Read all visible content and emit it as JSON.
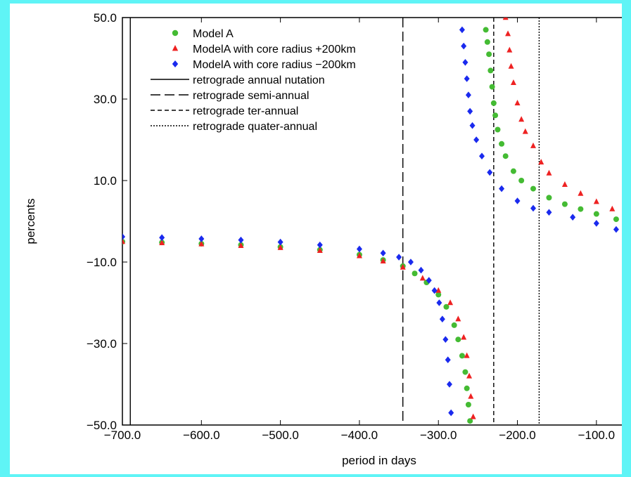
{
  "chart_data": {
    "type": "scatter",
    "xlabel": "period in days",
    "ylabel": "percents",
    "xlim": [
      -700,
      -50
    ],
    "ylim": [
      -50,
      50
    ],
    "x_ticks": [
      -700,
      -600,
      -500,
      -400,
      -300,
      -200,
      -100
    ],
    "x_tick_labels": [
      "−700.0",
      "−600.0",
      "−500.0",
      "−400.0",
      "−300.0",
      "−200.0",
      "−100.0"
    ],
    "y_ticks": [
      -50,
      -30,
      -10,
      10,
      30,
      50
    ],
    "y_tick_labels": [
      "−50.0",
      "−30.0",
      "−10.0",
      "10.0",
      "30.0",
      "50.0"
    ],
    "legend_placement": "top-left",
    "series": [
      {
        "name": "Model A",
        "marker": "circle",
        "color": "#44bb33",
        "points": [
          [
            -700,
            -5
          ],
          [
            -650,
            -5.2
          ],
          [
            -600,
            -5.5
          ],
          [
            -550,
            -5.8
          ],
          [
            -500,
            -6.3
          ],
          [
            -450,
            -7
          ],
          [
            -400,
            -8.2
          ],
          [
            -370,
            -9.5
          ],
          [
            -345,
            -11
          ],
          [
            -330,
            -12.8
          ],
          [
            -315,
            -15
          ],
          [
            -300,
            -18
          ],
          [
            -290,
            -21
          ],
          [
            -280,
            -25.5
          ],
          [
            -275,
            -29
          ],
          [
            -270,
            -33
          ],
          [
            -266,
            -37
          ],
          [
            -264,
            -41
          ],
          [
            -262,
            -45
          ],
          [
            -260,
            -49
          ],
          [
            -240,
            47
          ],
          [
            -238,
            44
          ],
          [
            -236,
            41
          ],
          [
            -234,
            37
          ],
          [
            -232,
            33
          ],
          [
            -230,
            29
          ],
          [
            -228,
            26
          ],
          [
            -225,
            22.5
          ],
          [
            -220,
            19
          ],
          [
            -215,
            16
          ],
          [
            -205,
            12.3
          ],
          [
            -195,
            10
          ],
          [
            -180,
            8
          ],
          [
            -160,
            5.8
          ],
          [
            -140,
            4.2
          ],
          [
            -120,
            3
          ],
          [
            -100,
            1.8
          ],
          [
            -75,
            0.5
          ],
          [
            -55,
            -0.3
          ]
        ]
      },
      {
        "name": "ModelA with core radius +200km",
        "marker": "triangle",
        "color": "#ee2222",
        "points": [
          [
            -700,
            -5
          ],
          [
            -650,
            -5.3
          ],
          [
            -600,
            -5.6
          ],
          [
            -550,
            -6
          ],
          [
            -500,
            -6.5
          ],
          [
            -450,
            -7.2
          ],
          [
            -400,
            -8.5
          ],
          [
            -370,
            -9.8
          ],
          [
            -345,
            -11.3
          ],
          [
            -320,
            -14
          ],
          [
            -300,
            -17
          ],
          [
            -285,
            -20
          ],
          [
            -275,
            -24
          ],
          [
            -268,
            -28.5
          ],
          [
            -264,
            -33
          ],
          [
            -261,
            -38
          ],
          [
            -259,
            -43
          ],
          [
            -256,
            -48
          ],
          [
            -215,
            50
          ],
          [
            -212,
            46
          ],
          [
            -210,
            42
          ],
          [
            -208,
            38
          ],
          [
            -205,
            34
          ],
          [
            -200,
            29
          ],
          [
            -195,
            25
          ],
          [
            -190,
            22
          ],
          [
            -180,
            18.5
          ],
          [
            -170,
            14.5
          ],
          [
            -160,
            11.8
          ],
          [
            -140,
            9
          ],
          [
            -120,
            6.8
          ],
          [
            -100,
            4.8
          ],
          [
            -80,
            3
          ],
          [
            -55,
            0.9
          ]
        ]
      },
      {
        "name": "ModelA with core radius −200km",
        "marker": "diamond",
        "color": "#1a2aee",
        "points": [
          [
            -700,
            -3.8
          ],
          [
            -650,
            -4
          ],
          [
            -600,
            -4.3
          ],
          [
            -550,
            -4.6
          ],
          [
            -500,
            -5.1
          ],
          [
            -450,
            -5.8
          ],
          [
            -400,
            -6.8
          ],
          [
            -370,
            -7.8
          ],
          [
            -350,
            -8.8
          ],
          [
            -335,
            -10
          ],
          [
            -322,
            -12
          ],
          [
            -312,
            -14.5
          ],
          [
            -305,
            -17
          ],
          [
            -299,
            -20
          ],
          [
            -295,
            -24
          ],
          [
            -291,
            -29
          ],
          [
            -288,
            -34
          ],
          [
            -286,
            -40
          ],
          [
            -284,
            -47
          ],
          [
            -270,
            47
          ],
          [
            -268,
            43
          ],
          [
            -266,
            39
          ],
          [
            -264,
            35
          ],
          [
            -262,
            31
          ],
          [
            -260,
            27
          ],
          [
            -257,
            23.5
          ],
          [
            -252,
            20
          ],
          [
            -245,
            16
          ],
          [
            -235,
            12
          ],
          [
            -220,
            8
          ],
          [
            -200,
            5
          ],
          [
            -180,
            3.2
          ],
          [
            -160,
            2.2
          ],
          [
            -130,
            1
          ],
          [
            -100,
            -0.5
          ],
          [
            -75,
            -2
          ],
          [
            -55,
            -3.3
          ]
        ]
      }
    ],
    "reference_lines": [
      {
        "name": "retrograde annual nutation",
        "x": -690,
        "style": "solid"
      },
      {
        "name": "retrograde semi-annual",
        "x": -345,
        "style": "long-dash"
      },
      {
        "name": "retrograde ter-annual",
        "x": -230,
        "style": "short-dash"
      },
      {
        "name": "retrograde quater-annual",
        "x": -172.5,
        "style": "dotted"
      }
    ]
  }
}
